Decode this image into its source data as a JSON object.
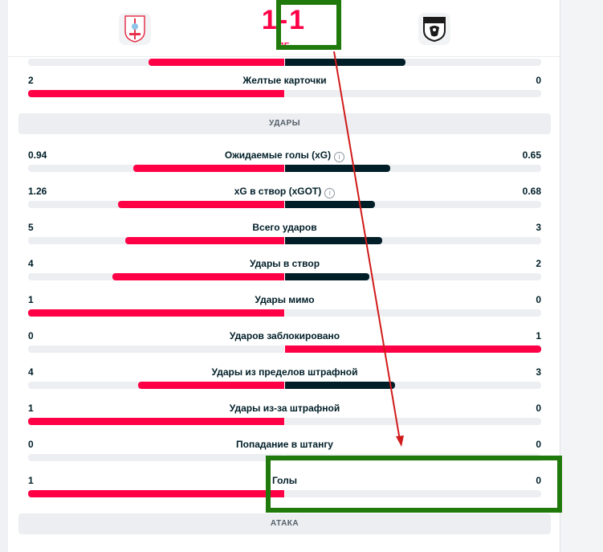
{
  "header": {
    "home_logo": "celta-crest-icon",
    "away_logo": "paok-crest-icon",
    "score": "1-1",
    "score_sub": "ПЕ"
  },
  "partial_row": {
    "left_value": "",
    "name": "",
    "right_value": ""
  },
  "cards_row": {
    "left_value": "2",
    "name": "Желтые карточки",
    "right_value": "0"
  },
  "sections": {
    "shots": "УДАРЫ",
    "attack": "АТАКА"
  },
  "stats": [
    {
      "left": "0.94",
      "name": "Ожидаемые голы (xG)",
      "right": "0.65",
      "info": true
    },
    {
      "left": "1.26",
      "name": "xG в створ (xGOT)",
      "right": "0.68",
      "info": true
    },
    {
      "left": "5",
      "name": "Всего ударов",
      "right": "3",
      "info": false
    },
    {
      "left": "4",
      "name": "Удары в створ",
      "right": "2",
      "info": false
    },
    {
      "left": "1",
      "name": "Удары мимо",
      "right": "0",
      "info": false
    },
    {
      "left": "0",
      "name": "Ударов заблокировано",
      "right": "1",
      "info": false
    },
    {
      "left": "4",
      "name": "Удары из пределов штрафной",
      "right": "3",
      "info": false
    },
    {
      "left": "1",
      "name": "Удары из-за штрафной",
      "right": "0",
      "info": false
    },
    {
      "left": "0",
      "name": "Попадание в штангу",
      "right": "0",
      "info": false
    },
    {
      "left": "1",
      "name": "Голы",
      "right": "0",
      "info": false
    }
  ],
  "bar_shares": [
    {
      "left": 0.53,
      "right": 0.47
    },
    {
      "left": 1.0,
      "right": 0.0
    },
    {
      "left": 0.59,
      "right": 0.41
    },
    {
      "left": 0.65,
      "right": 0.35
    },
    {
      "left": 0.62,
      "right": 0.38
    },
    {
      "left": 0.67,
      "right": 0.33
    },
    {
      "left": 1.0,
      "right": 0.0
    },
    {
      "left": 0.0,
      "right": 1.0
    },
    {
      "left": 0.57,
      "right": 0.43
    },
    {
      "left": 1.0,
      "right": 0.0
    },
    {
      "left": 0.0,
      "right": 0.0
    },
    {
      "left": 1.0,
      "right": 0.0
    }
  ],
  "colors": {
    "home": "#ff0046",
    "away": "#001e28",
    "annotation_box": "#1f7a0b",
    "annotation_arrow": "#d11a1a"
  }
}
